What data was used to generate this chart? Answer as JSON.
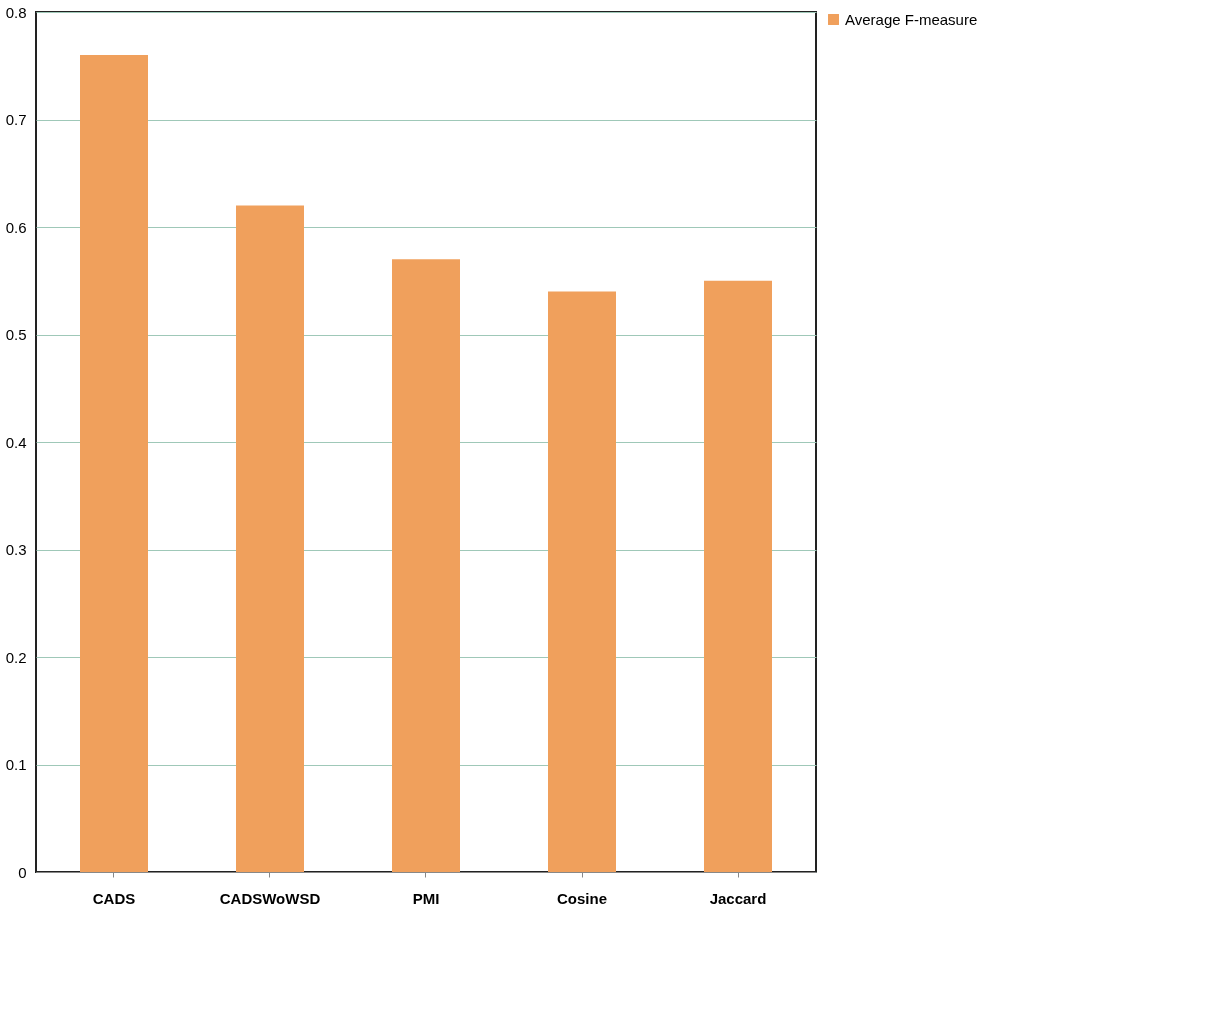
{
  "chart_data": {
    "type": "bar",
    "categories": [
      "CADS",
      "CADSWoWSD",
      "PMI",
      "Cosine",
      "Jaccard"
    ],
    "series": [
      {
        "name": "Average F-measure",
        "color": "#f0a05c",
        "values": [
          0.76,
          0.62,
          0.57,
          0.54,
          0.55
        ]
      }
    ],
    "ylim": [
      0,
      0.8
    ],
    "yticks": [
      0,
      0.1,
      0.2,
      0.3,
      0.4,
      0.5,
      0.6,
      0.7,
      0.8
    ],
    "grid": "y",
    "legend": "right"
  }
}
